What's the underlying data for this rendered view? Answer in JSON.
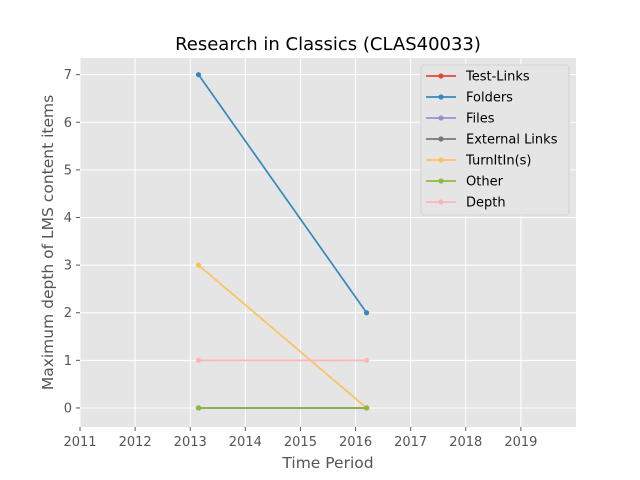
{
  "chart_data": {
    "type": "line",
    "title": "Research in Classics (CLAS40033)",
    "xlabel": "Time Period",
    "ylabel": "Maximum depth of LMS content items",
    "xlim": [
      2011,
      2020
    ],
    "ylim": [
      -0.4,
      7.35
    ],
    "xticks": [
      2011,
      2012,
      2013,
      2014,
      2015,
      2016,
      2017,
      2018,
      2019
    ],
    "yticks": [
      0,
      1,
      2,
      3,
      4,
      5,
      6,
      7
    ],
    "x": [
      2013.15,
      2016.2
    ],
    "grid": true,
    "legend_position": "top-right",
    "series": [
      {
        "name": "Test-Links",
        "color": "#E24A33",
        "values": [
          0,
          0
        ]
      },
      {
        "name": "Folders",
        "color": "#348ABD",
        "values": [
          7,
          2
        ]
      },
      {
        "name": "Files",
        "color": "#988ED5",
        "values": [
          0,
          0
        ]
      },
      {
        "name": "External Links",
        "color": "#777777",
        "values": [
          0,
          0
        ]
      },
      {
        "name": "TurnItIn(s)",
        "color": "#FBC15E",
        "values": [
          3,
          0
        ]
      },
      {
        "name": "Other",
        "color": "#8EBA42",
        "values": [
          0,
          0
        ]
      },
      {
        "name": "Depth",
        "color": "#FFB5B8",
        "values": [
          1,
          1
        ]
      }
    ]
  }
}
